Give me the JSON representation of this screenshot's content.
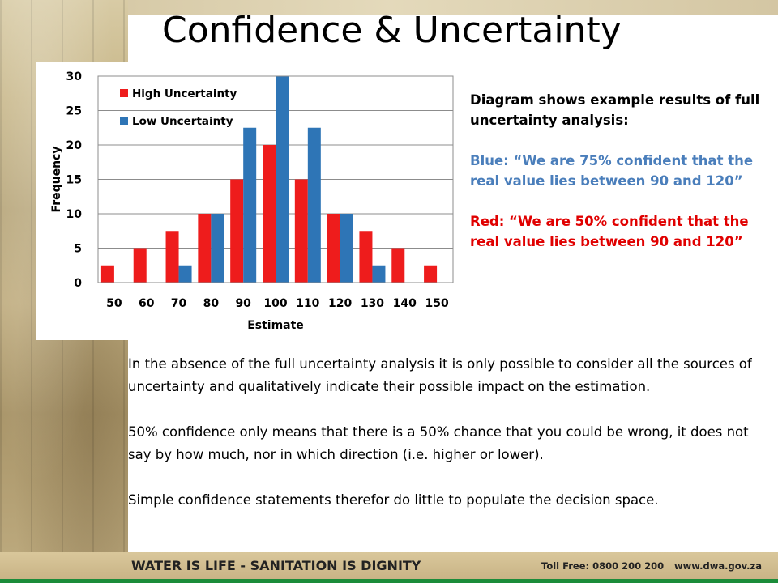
{
  "slide": {
    "title": "Confidence & Uncertainty",
    "caption": {
      "intro": "Diagram shows example results of full uncertainty analysis:",
      "blue": "Blue: “We are 75% confident that the real value lies between 90 and 120”",
      "red": "Red: “We are 50% confident that the real value lies between 90 and 120”"
    },
    "body": [
      "In the absence of the full uncertainty analysis it is only possible to consider all the sources of uncertainty and qualitatively indicate their possible impact on the estimation.",
      "50% confidence only means that there is a 50% chance that you could be wrong, it does not say by how much, nor in which direction (i.e. higher or lower).",
      "Simple confidence statements therefor do little to populate the decision space."
    ],
    "footer": {
      "slogan": "WATER IS LIFE - SANITATION IS DIGNITY",
      "toll_free": "Toll Free: 0800 200 200",
      "website": "www.dwa.gov.za"
    }
  },
  "colors": {
    "high": "#ee1c1c",
    "low": "#2e75b6",
    "caption_blue": "#4a7ebb",
    "caption_red": "#e00000",
    "footer_green": "#1b8c3a"
  },
  "chart_data": {
    "type": "bar",
    "categories": [
      "50",
      "60",
      "70",
      "80",
      "90",
      "100",
      "110",
      "120",
      "130",
      "140",
      "150"
    ],
    "series": [
      {
        "name": "High Uncertainty",
        "values": [
          2.5,
          5,
          7.5,
          10,
          15,
          20,
          15,
          10,
          7.5,
          5,
          2.5
        ]
      },
      {
        "name": "Low Uncertainty",
        "values": [
          0,
          0,
          2.5,
          10,
          22.5,
          30,
          22.5,
          10,
          2.5,
          0,
          0
        ]
      }
    ],
    "xlabel": "Estimate",
    "ylabel": "Frequency",
    "ylim": [
      0,
      30
    ],
    "yticks": [
      "0",
      "5",
      "10",
      "15",
      "20",
      "25",
      "30"
    ],
    "grid": true,
    "legend_position": "top-left"
  }
}
